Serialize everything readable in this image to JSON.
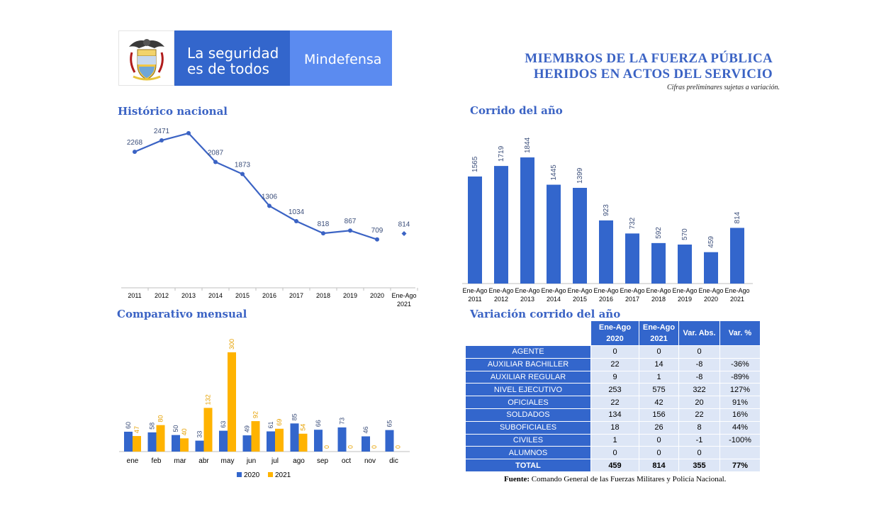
{
  "header": {
    "slogan_line1": "La seguridad",
    "slogan_line2": "es de todos",
    "ministry": "Mindefensa",
    "brand_colors": {
      "primary": "#3366cc",
      "light": "#5b8bf0"
    }
  },
  "title": {
    "line1": "MIEMBROS DE LA FUERZA PÚBLICA",
    "line2": "HERIDOS EN ACTOS DEL SERVICIO",
    "note": "Cifras preliminares sujetas a variación."
  },
  "sections": {
    "historico": "Histórico nacional",
    "corrido": "Corrido del año",
    "mensual": "Comparativo mensual",
    "variacion": "Variación corrido del año"
  },
  "chart_data": [
    {
      "id": "historico",
      "type": "line",
      "categories": [
        "2011",
        "2012",
        "2013",
        "2014",
        "2015",
        "2016",
        "2017",
        "2018",
        "2019",
        "2020",
        "Ene-Ago 2021"
      ],
      "values": [
        2268,
        2471,
        2599,
        2087,
        1873,
        1306,
        1034,
        818,
        867,
        709,
        814
      ],
      "color": "#3b63c4"
    },
    {
      "id": "corrido",
      "type": "bar",
      "categories": [
        "Ene-Ago 2011",
        "Ene-Ago 2012",
        "Ene-Ago 2013",
        "Ene-Ago 2014",
        "Ene-Ago 2015",
        "Ene-Ago 2016",
        "Ene-Ago 2017",
        "Ene-Ago 2018",
        "Ene-Ago 2019",
        "Ene-Ago 2020",
        "Ene-Ago 2021"
      ],
      "values": [
        1565,
        1719,
        1844,
        1445,
        1399,
        923,
        732,
        592,
        570,
        459,
        814
      ],
      "color": "#3366cc"
    },
    {
      "id": "mensual",
      "type": "bar",
      "categories": [
        "ene",
        "feb",
        "mar",
        "abr",
        "may",
        "jun",
        "jul",
        "ago",
        "sep",
        "oct",
        "nov",
        "dic"
      ],
      "series": [
        {
          "name": "2020",
          "values": [
            60,
            58,
            50,
            33,
            63,
            49,
            61,
            85,
            66,
            73,
            46,
            65
          ],
          "color": "#3366cc"
        },
        {
          "name": "2021",
          "values": [
            47,
            80,
            40,
            132,
            300,
            92,
            69,
            54,
            0,
            0,
            0,
            0
          ],
          "color": "#ffb300"
        }
      ],
      "legend": "bottom"
    }
  ],
  "table": {
    "headers": [
      "Ene-Ago\n2020",
      "Ene-Ago\n2021",
      "Var. Abs.",
      "Var. %"
    ],
    "header_lines": [
      [
        "Ene-Ago",
        "2020"
      ],
      [
        "Ene-Ago",
        "2021"
      ],
      [
        "Var. Abs.",
        ""
      ],
      [
        "Var. %",
        ""
      ]
    ],
    "rows": [
      {
        "label": "AGENTE",
        "v2020": "0",
        "v2021": "0",
        "abs": "0",
        "pct": ""
      },
      {
        "label": "AUXILIAR BACHILLER",
        "v2020": "22",
        "v2021": "14",
        "abs": "-8",
        "pct": "-36%"
      },
      {
        "label": "AUXILIAR REGULAR",
        "v2020": "9",
        "v2021": "1",
        "abs": "-8",
        "pct": "-89%"
      },
      {
        "label": "NIVEL EJECUTIVO",
        "v2020": "253",
        "v2021": "575",
        "abs": "322",
        "pct": "127%"
      },
      {
        "label": "OFICIALES",
        "v2020": "22",
        "v2021": "42",
        "abs": "20",
        "pct": "91%"
      },
      {
        "label": "SOLDADOS",
        "v2020": "134",
        "v2021": "156",
        "abs": "22",
        "pct": "16%"
      },
      {
        "label": "SUBOFICIALES",
        "v2020": "18",
        "v2021": "26",
        "abs": "8",
        "pct": "44%"
      },
      {
        "label": "CIVILES",
        "v2020": "1",
        "v2021": "0",
        "abs": "-1",
        "pct": "-100%"
      },
      {
        "label": "ALUMNOS",
        "v2020": "0",
        "v2021": "0",
        "abs": "0",
        "pct": ""
      }
    ],
    "total": {
      "label": "TOTAL",
      "v2020": "459",
      "v2021": "814",
      "abs": "355",
      "pct": "77%"
    }
  },
  "source": {
    "label": "Fuente:",
    "text": "Comando General de las Fuerzas Militares y Policía Nacional."
  }
}
